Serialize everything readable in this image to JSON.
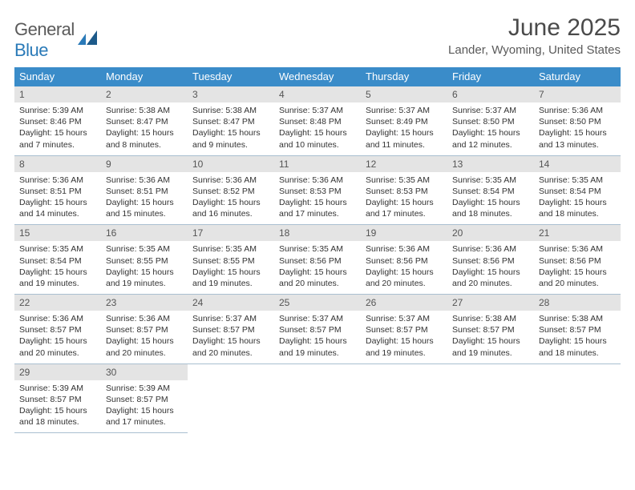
{
  "logo": {
    "text_general": "General",
    "text_blue": "Blue"
  },
  "title": "June 2025",
  "location": "Lander, Wyoming, United States",
  "colors": {
    "header_bg": "#3a8cc9",
    "header_text": "#ffffff",
    "daynum_bg": "#e4e4e4",
    "daynum_text": "#555555",
    "cell_border": "#a9bfd0",
    "body_text": "#333333",
    "logo_gray": "#5a5a5a",
    "logo_blue": "#2a7ab8"
  },
  "weekdays": [
    "Sunday",
    "Monday",
    "Tuesday",
    "Wednesday",
    "Thursday",
    "Friday",
    "Saturday"
  ],
  "days": [
    {
      "n": "1",
      "sunrise": "5:39 AM",
      "sunset": "8:46 PM",
      "dh": "15",
      "dm": "7"
    },
    {
      "n": "2",
      "sunrise": "5:38 AM",
      "sunset": "8:47 PM",
      "dh": "15",
      "dm": "8"
    },
    {
      "n": "3",
      "sunrise": "5:38 AM",
      "sunset": "8:47 PM",
      "dh": "15",
      "dm": "9"
    },
    {
      "n": "4",
      "sunrise": "5:37 AM",
      "sunset": "8:48 PM",
      "dh": "15",
      "dm": "10"
    },
    {
      "n": "5",
      "sunrise": "5:37 AM",
      "sunset": "8:49 PM",
      "dh": "15",
      "dm": "11"
    },
    {
      "n": "6",
      "sunrise": "5:37 AM",
      "sunset": "8:50 PM",
      "dh": "15",
      "dm": "12"
    },
    {
      "n": "7",
      "sunrise": "5:36 AM",
      "sunset": "8:50 PM",
      "dh": "15",
      "dm": "13"
    },
    {
      "n": "8",
      "sunrise": "5:36 AM",
      "sunset": "8:51 PM",
      "dh": "15",
      "dm": "14"
    },
    {
      "n": "9",
      "sunrise": "5:36 AM",
      "sunset": "8:51 PM",
      "dh": "15",
      "dm": "15"
    },
    {
      "n": "10",
      "sunrise": "5:36 AM",
      "sunset": "8:52 PM",
      "dh": "15",
      "dm": "16"
    },
    {
      "n": "11",
      "sunrise": "5:36 AM",
      "sunset": "8:53 PM",
      "dh": "15",
      "dm": "17"
    },
    {
      "n": "12",
      "sunrise": "5:35 AM",
      "sunset": "8:53 PM",
      "dh": "15",
      "dm": "17"
    },
    {
      "n": "13",
      "sunrise": "5:35 AM",
      "sunset": "8:54 PM",
      "dh": "15",
      "dm": "18"
    },
    {
      "n": "14",
      "sunrise": "5:35 AM",
      "sunset": "8:54 PM",
      "dh": "15",
      "dm": "18"
    },
    {
      "n": "15",
      "sunrise": "5:35 AM",
      "sunset": "8:54 PM",
      "dh": "15",
      "dm": "19"
    },
    {
      "n": "16",
      "sunrise": "5:35 AM",
      "sunset": "8:55 PM",
      "dh": "15",
      "dm": "19"
    },
    {
      "n": "17",
      "sunrise": "5:35 AM",
      "sunset": "8:55 PM",
      "dh": "15",
      "dm": "19"
    },
    {
      "n": "18",
      "sunrise": "5:35 AM",
      "sunset": "8:56 PM",
      "dh": "15",
      "dm": "20"
    },
    {
      "n": "19",
      "sunrise": "5:36 AM",
      "sunset": "8:56 PM",
      "dh": "15",
      "dm": "20"
    },
    {
      "n": "20",
      "sunrise": "5:36 AM",
      "sunset": "8:56 PM",
      "dh": "15",
      "dm": "20"
    },
    {
      "n": "21",
      "sunrise": "5:36 AM",
      "sunset": "8:56 PM",
      "dh": "15",
      "dm": "20"
    },
    {
      "n": "22",
      "sunrise": "5:36 AM",
      "sunset": "8:57 PM",
      "dh": "15",
      "dm": "20"
    },
    {
      "n": "23",
      "sunrise": "5:36 AM",
      "sunset": "8:57 PM",
      "dh": "15",
      "dm": "20"
    },
    {
      "n": "24",
      "sunrise": "5:37 AM",
      "sunset": "8:57 PM",
      "dh": "15",
      "dm": "20"
    },
    {
      "n": "25",
      "sunrise": "5:37 AM",
      "sunset": "8:57 PM",
      "dh": "15",
      "dm": "19"
    },
    {
      "n": "26",
      "sunrise": "5:37 AM",
      "sunset": "8:57 PM",
      "dh": "15",
      "dm": "19"
    },
    {
      "n": "27",
      "sunrise": "5:38 AM",
      "sunset": "8:57 PM",
      "dh": "15",
      "dm": "19"
    },
    {
      "n": "28",
      "sunrise": "5:38 AM",
      "sunset": "8:57 PM",
      "dh": "15",
      "dm": "18"
    },
    {
      "n": "29",
      "sunrise": "5:39 AM",
      "sunset": "8:57 PM",
      "dh": "15",
      "dm": "18"
    },
    {
      "n": "30",
      "sunrise": "5:39 AM",
      "sunset": "8:57 PM",
      "dh": "15",
      "dm": "17"
    }
  ],
  "start_offset": 0,
  "total_cells": 35
}
